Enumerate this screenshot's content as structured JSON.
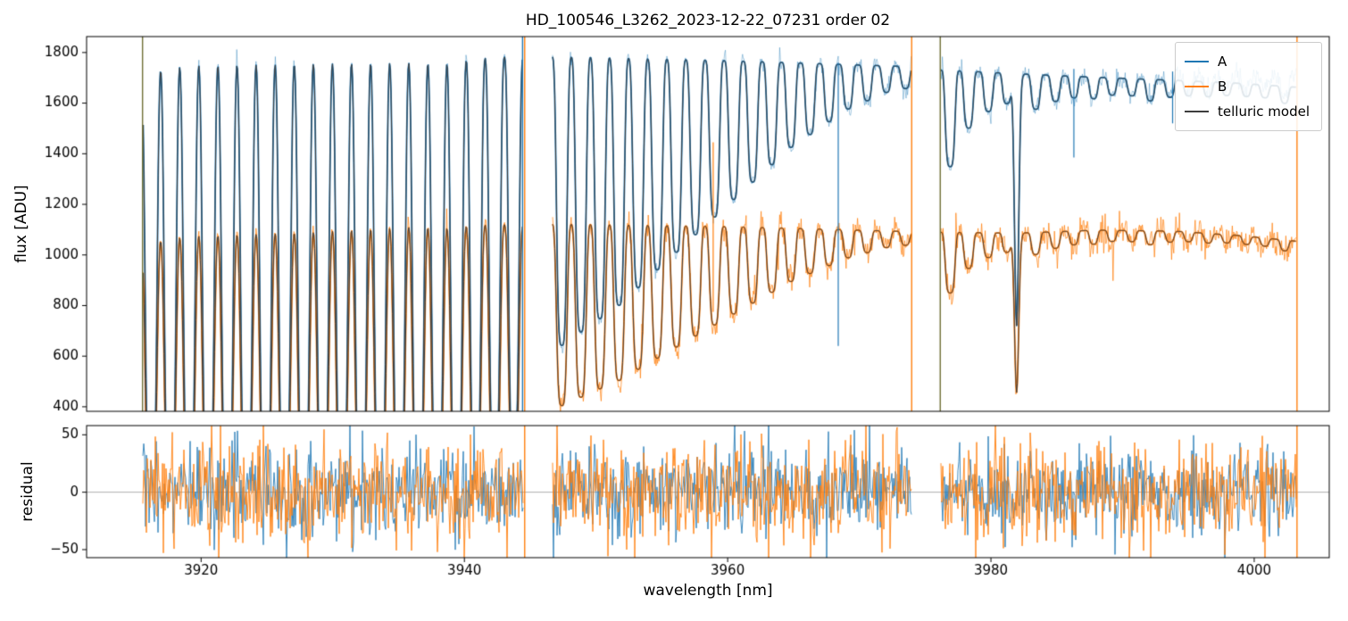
{
  "chart_data": {
    "type": "line",
    "title": "HD_100546_L3262_2023-12-22_07231  order 02",
    "xlabel": "wavelength [nm]",
    "xlim": [
      3911.3,
      4005.7
    ],
    "xticks": [
      3920,
      3940,
      3960,
      3980,
      4000
    ],
    "panels": [
      {
        "ylabel": "flux [ADU]",
        "ylim": [
          382,
          1863
        ],
        "yticks": [
          400,
          600,
          800,
          1000,
          1200,
          1400,
          1600,
          1800
        ]
      },
      {
        "ylabel": "residual",
        "ylim": [
          -57,
          58
        ],
        "yticks": [
          -50,
          0,
          50
        ]
      }
    ],
    "legend": [
      {
        "label": "A",
        "color": "#1f77b4"
      },
      {
        "label": "B",
        "color": "#ff7f0e"
      },
      {
        "label": "telluric model",
        "color": "#3d3d3d"
      }
    ],
    "colors": {
      "A": "#1f77b4",
      "B": "#ff7f0e",
      "model": "#3d3d3d",
      "A_noise": "rgba(31,119,180,0.40)",
      "B_noise": "rgba(255,127,14,0.72)",
      "zero_line": "#999999",
      "axis": "#000000"
    },
    "segments": [
      [
        3915.6,
        3944.45
      ],
      [
        3946.7,
        3973.95
      ],
      [
        3976.2,
        4003.2
      ]
    ],
    "continuum_A": [
      [
        3913,
        1560
      ],
      [
        3914.5,
        1640
      ],
      [
        3916,
        1762
      ],
      [
        3919,
        1788
      ],
      [
        3928,
        1796
      ],
      [
        3936,
        1800
      ],
      [
        3945,
        1788
      ],
      [
        3947,
        1786
      ],
      [
        3952,
        1780
      ],
      [
        3960,
        1768
      ],
      [
        3967,
        1756
      ],
      [
        3974,
        1744
      ],
      [
        3976,
        1732
      ],
      [
        3982,
        1716
      ],
      [
        3988,
        1702
      ],
      [
        3994,
        1690
      ],
      [
        3999,
        1678
      ],
      [
        4004,
        1660
      ]
    ],
    "continuum_B": [
      [
        3913,
        990
      ],
      [
        3914.5,
        1030
      ],
      [
        3916,
        1072
      ],
      [
        3919,
        1098
      ],
      [
        3928,
        1114
      ],
      [
        3936,
        1136
      ],
      [
        3945,
        1122
      ],
      [
        3947,
        1124
      ],
      [
        3952,
        1120
      ],
      [
        3960,
        1112
      ],
      [
        3967,
        1102
      ],
      [
        3974,
        1092
      ],
      [
        3976,
        1090
      ],
      [
        3982,
        1086
      ],
      [
        3988,
        1098
      ],
      [
        3994,
        1094
      ],
      [
        3999,
        1076
      ],
      [
        4004,
        1050
      ]
    ],
    "raw_tail_A": [
      3990,
      3.5
    ],
    "telluric_lines": [
      [
        3916.2,
        1.0,
        0.42
      ],
      [
        3917.65,
        1.0,
        0.42
      ],
      [
        3919.1,
        1.0,
        0.42
      ],
      [
        3920.55,
        1.0,
        0.42
      ],
      [
        3922.0,
        1.0,
        0.42
      ],
      [
        3923.45,
        1.0,
        0.42
      ],
      [
        3924.9,
        1.0,
        0.42
      ],
      [
        3926.35,
        1.0,
        0.42
      ],
      [
        3927.8,
        1.0,
        0.42
      ],
      [
        3929.25,
        1.0,
        0.42
      ],
      [
        3930.7,
        1.0,
        0.42
      ],
      [
        3932.15,
        1.0,
        0.42
      ],
      [
        3933.6,
        1.0,
        0.42
      ],
      [
        3935.05,
        1.0,
        0.42
      ],
      [
        3936.5,
        1.0,
        0.42
      ],
      [
        3937.95,
        1.0,
        0.42
      ],
      [
        3939.4,
        1.0,
        0.42
      ],
      [
        3940.85,
        0.96,
        0.4
      ],
      [
        3942.3,
        0.92,
        0.4
      ],
      [
        3943.75,
        0.88,
        0.38
      ],
      [
        3947.4,
        0.64,
        0.38
      ],
      [
        3948.85,
        0.61,
        0.38
      ],
      [
        3950.3,
        0.58,
        0.38
      ],
      [
        3951.75,
        0.55,
        0.38
      ],
      [
        3953.2,
        0.51,
        0.38
      ],
      [
        3954.65,
        0.47,
        0.38
      ],
      [
        3956.1,
        0.43,
        0.37
      ],
      [
        3957.55,
        0.39,
        0.37
      ],
      [
        3959.0,
        0.35,
        0.36
      ],
      [
        3960.45,
        0.31,
        0.36
      ],
      [
        3961.9,
        0.27,
        0.35
      ],
      [
        3963.35,
        0.23,
        0.35
      ],
      [
        3964.8,
        0.19,
        0.34
      ],
      [
        3966.25,
        0.16,
        0.34
      ],
      [
        3967.7,
        0.13,
        0.33
      ],
      [
        3969.15,
        0.1,
        0.33
      ],
      [
        3970.6,
        0.08,
        0.32
      ],
      [
        3972.05,
        0.06,
        0.32
      ],
      [
        3973.5,
        0.05,
        0.32
      ],
      [
        3976.9,
        0.22,
        0.35
      ],
      [
        3978.3,
        0.13,
        0.34
      ],
      [
        3979.8,
        0.09,
        0.33
      ],
      [
        3981.2,
        0.07,
        0.3
      ],
      [
        3981.95,
        0.58,
        0.16,
        2
      ],
      [
        3983.4,
        0.08,
        0.32
      ],
      [
        3984.9,
        0.06,
        0.32
      ],
      [
        3986.3,
        0.05,
        0.3
      ],
      [
        3987.8,
        0.05,
        0.3
      ],
      [
        3989.2,
        0.04,
        0.3
      ],
      [
        3990.7,
        0.04,
        0.3
      ],
      [
        3992.1,
        0.05,
        0.3
      ],
      [
        3993.6,
        0.04,
        0.3
      ],
      [
        3995.0,
        0.035,
        0.3
      ],
      [
        3996.5,
        0.035,
        0.3
      ],
      [
        3997.9,
        0.03,
        0.3
      ],
      [
        3999.4,
        0.03,
        0.3
      ],
      [
        4000.8,
        0.03,
        0.3
      ],
      [
        4002.3,
        0.04,
        0.3
      ]
    ],
    "noise": {
      "A": [
        13,
        20
      ],
      "B": [
        20,
        30
      ],
      "residual_A": 19,
      "residual_B": 21
    },
    "artifacts": [
      {
        "x": 3915.55,
        "color": "#6f6f35",
        "panel": "top"
      },
      {
        "x": 3944.42,
        "color": "#1f77b4",
        "panel": "top"
      },
      {
        "x": 3944.58,
        "color": "#ff7f0e",
        "panel": "both"
      },
      {
        "x": 3973.98,
        "color": "#ff7f0e",
        "panel": "top"
      },
      {
        "x": 3976.15,
        "color": "#6f6f35",
        "panel": "top"
      },
      {
        "x": 4003.25,
        "color": "#ff7f0e",
        "panel": "both"
      }
    ],
    "spikes": [
      {
        "x": 3958.9,
        "color": "#ff7f0e",
        "y0": 775,
        "y1": 1445
      },
      {
        "x": 3968.4,
        "color": "#1f77b4",
        "y0": 640,
        "y1": 1760
      },
      {
        "x": 3986.3,
        "color": "#1f77b4",
        "y0": 1385,
        "y1": 1735
      },
      {
        "x": 3993.8,
        "color": "#1f77b4",
        "y0": 1520,
        "y1": 1725
      }
    ]
  }
}
